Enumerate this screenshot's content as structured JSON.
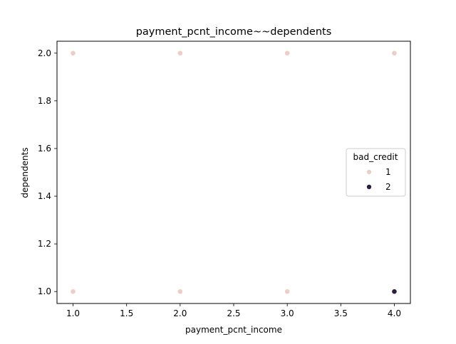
{
  "chart_data": {
    "type": "scatter",
    "title": "payment_pcnt_income~~dependents",
    "xlabel": "payment_pcnt_income",
    "ylabel": "dependents",
    "xlim": [
      0.85,
      4.15
    ],
    "ylim": [
      0.95,
      2.05
    ],
    "xticks": [
      1.0,
      1.5,
      2.0,
      2.5,
      3.0,
      3.5,
      4.0
    ],
    "xtick_labels": [
      "1.0",
      "1.5",
      "2.0",
      "2.5",
      "3.0",
      "3.5",
      "4.0"
    ],
    "yticks": [
      1.0,
      1.2,
      1.4,
      1.6,
      1.8,
      2.0
    ],
    "ytick_labels": [
      "1.0",
      "1.2",
      "1.4",
      "1.6",
      "1.8",
      "2.0"
    ],
    "grid": false,
    "legend": {
      "title": "bad_credit",
      "placement": "center-right",
      "entries": [
        {
          "label": "1",
          "color": "#ebcec5"
        },
        {
          "label": "2",
          "color": "#2c1e3d"
        }
      ]
    },
    "series": [
      {
        "name": "1",
        "color": "#ebcec5",
        "points": [
          {
            "x": 1.0,
            "y": 2.0
          },
          {
            "x": 2.0,
            "y": 2.0
          },
          {
            "x": 3.0,
            "y": 2.0
          },
          {
            "x": 4.0,
            "y": 2.0
          },
          {
            "x": 1.0,
            "y": 1.0
          },
          {
            "x": 2.0,
            "y": 1.0
          },
          {
            "x": 3.0,
            "y": 1.0
          }
        ]
      },
      {
        "name": "2",
        "color": "#2c1e3d",
        "points": [
          {
            "x": 4.0,
            "y": 1.0
          }
        ]
      }
    ]
  }
}
